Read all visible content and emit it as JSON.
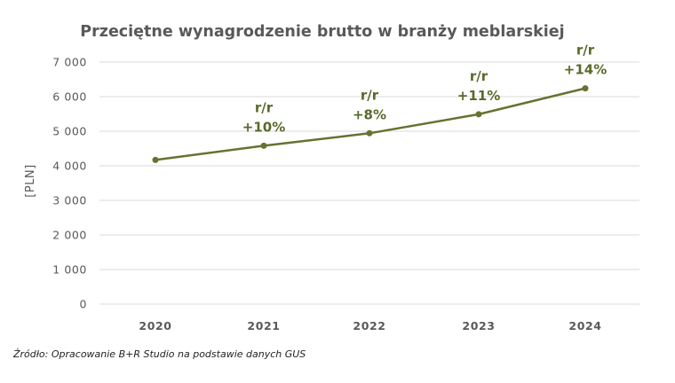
{
  "chart_data": {
    "type": "line",
    "title": "Przeciętne wynagrodzenie brutto w branży meblarskiej",
    "ylabel": "[PLN]",
    "xlabel": "",
    "categories": [
      "2020",
      "2021",
      "2022",
      "2023",
      "2024"
    ],
    "series": [
      {
        "name": "Przeciętne wynagrodzenie brutto",
        "values": [
          4170,
          4580,
          4940,
          5490,
          6240
        ]
      }
    ],
    "ylim": [
      0,
      7000
    ],
    "yticks": [
      0,
      1000,
      2000,
      3000,
      4000,
      5000,
      6000,
      7000
    ],
    "ytick_labels": [
      "0",
      "1 000",
      "2 000",
      "3 000",
      "4 000",
      "5 000",
      "6 000",
      "7 000"
    ],
    "grid": true,
    "annotations": [
      {
        "category": "2021",
        "line1": "r/r",
        "line2": "+10%"
      },
      {
        "category": "2022",
        "line1": "r/r",
        "line2": "+8%"
      },
      {
        "category": "2023",
        "line1": "r/r",
        "line2": "+11%"
      },
      {
        "category": "2024",
        "line1": "r/r",
        "line2": "+14%"
      }
    ],
    "color": "#66722f",
    "source": "Źródło: Opracowanie B+R Studio na podstawie danych GUS"
  }
}
